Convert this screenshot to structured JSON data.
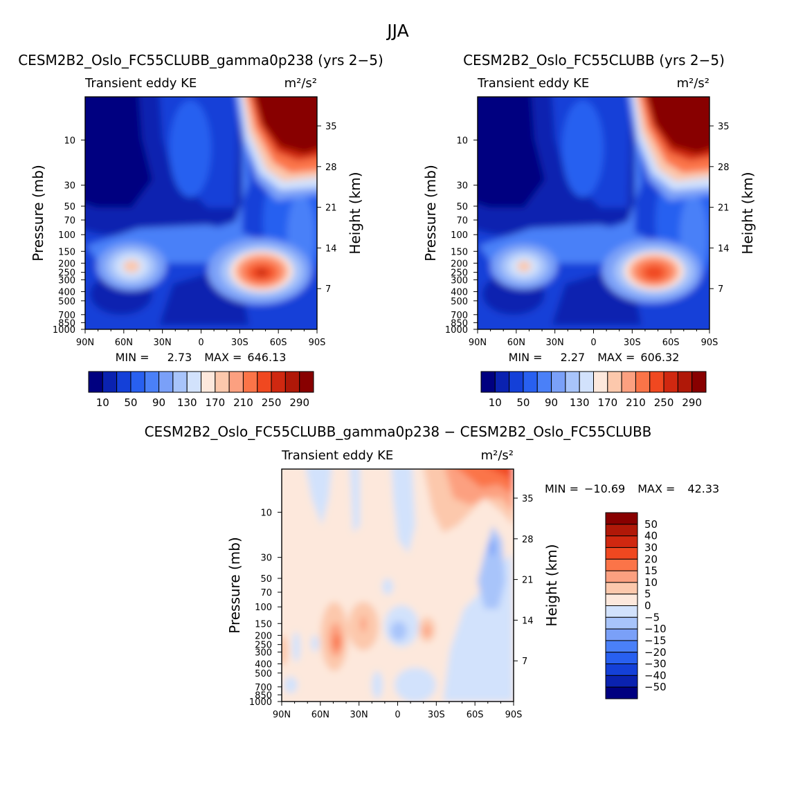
{
  "page_title": "JJA",
  "colors": {
    "main_scale": [
      "#000080",
      "#0a22b0",
      "#1440d8",
      "#2860f0",
      "#4a80f8",
      "#7aa0f8",
      "#a8c4fa",
      "#d2e2fc",
      "#fde8dc",
      "#fcc8ac",
      "#fca080",
      "#fb7448",
      "#f04820",
      "#d02810",
      "#b01808",
      "#880000"
    ],
    "diff_scale": [
      "#000080",
      "#0a22b0",
      "#1440d8",
      "#2860f0",
      "#4a80f8",
      "#7aa0f8",
      "#a8c4fa",
      "#d2e2fc",
      "#fde8dc",
      "#fcc8ac",
      "#fca080",
      "#fb7448",
      "#f04820",
      "#d02810",
      "#880000"
    ]
  },
  "chart_data": [
    {
      "type": "heatmap",
      "title": "CESM2B2_Oslo_FC55CLUBB_gamma0p238 (yrs 2−5)",
      "left_subtitle": "Transient eddy KE",
      "units": "m²/s²",
      "xlabel": "",
      "ylabel": "Pressure (mb)",
      "ylabel_right": "Height (km)",
      "x_ticks": [
        "90N",
        "60N",
        "30N",
        "0",
        "30S",
        "60S",
        "90S"
      ],
      "y_ticks": [
        "10",
        "30",
        "50",
        "70",
        "100",
        "150",
        "200",
        "250",
        "300",
        "400",
        "500",
        "700",
        "850",
        "1000"
      ],
      "y2_ticks": [
        "35",
        "28",
        "21",
        "14",
        "7"
      ],
      "stats": {
        "min_label": "MIN =",
        "min": "2.73",
        "max_label": "MAX =",
        "max": "646.13"
      },
      "colorbar_labels": [
        "10",
        "50",
        "90",
        "130",
        "170",
        "210",
        "250",
        "290"
      ],
      "levels": [
        10,
        30,
        50,
        70,
        90,
        110,
        130,
        150,
        170,
        190,
        210,
        230,
        250,
        270,
        290
      ]
    },
    {
      "type": "heatmap",
      "title": "CESM2B2_Oslo_FC55CLUBB (yrs 2−5)",
      "left_subtitle": "Transient eddy KE",
      "units": "m²/s²",
      "xlabel": "",
      "ylabel": "Pressure (mb)",
      "ylabel_right": "Height (km)",
      "x_ticks": [
        "90N",
        "60N",
        "30N",
        "0",
        "30S",
        "60S",
        "90S"
      ],
      "y_ticks": [
        "10",
        "30",
        "50",
        "70",
        "100",
        "150",
        "200",
        "250",
        "300",
        "400",
        "500",
        "700",
        "850",
        "1000"
      ],
      "y2_ticks": [
        "35",
        "28",
        "21",
        "14",
        "7"
      ],
      "stats": {
        "min_label": "MIN =",
        "min": "2.27",
        "max_label": "MAX =",
        "max": "606.32"
      },
      "colorbar_labels": [
        "10",
        "50",
        "90",
        "130",
        "170",
        "210",
        "250",
        "290"
      ],
      "levels": [
        10,
        30,
        50,
        70,
        90,
        110,
        130,
        150,
        170,
        190,
        210,
        230,
        250,
        270,
        290
      ]
    },
    {
      "type": "heatmap",
      "title": "CESM2B2_Oslo_FC55CLUBB_gamma0p238 − CESM2B2_Oslo_FC55CLUBB",
      "left_subtitle": "Transient eddy KE",
      "units": "m²/s²",
      "xlabel": "",
      "ylabel": "Pressure (mb)",
      "ylabel_right": "Height (km)",
      "x_ticks": [
        "90N",
        "60N",
        "30N",
        "0",
        "30S",
        "60S",
        "90S"
      ],
      "y_ticks": [
        "10",
        "30",
        "50",
        "70",
        "100",
        "150",
        "200",
        "250",
        "300",
        "400",
        "500",
        "700",
        "850",
        "1000"
      ],
      "y2_ticks": [
        "35",
        "28",
        "21",
        "14",
        "7"
      ],
      "stats": {
        "min_label": "MIN =",
        "min": "−10.69",
        "max_label": "MAX =",
        "max": "42.33"
      },
      "colorbar_labels": [
        "50",
        "40",
        "30",
        "20",
        "15",
        "10",
        "5",
        "0",
        "−5",
        "−10",
        "−15",
        "−20",
        "−30",
        "−40",
        "−50"
      ],
      "levels": [
        -50,
        -40,
        -30,
        -20,
        -15,
        -10,
        -5,
        0,
        5,
        10,
        15,
        20,
        30,
        40,
        50
      ]
    }
  ]
}
